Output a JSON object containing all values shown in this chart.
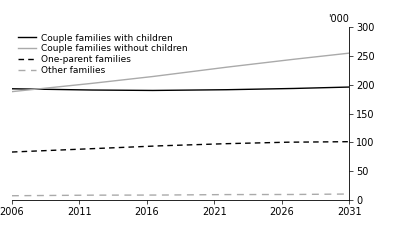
{
  "title": "",
  "ylabel": "'000",
  "years": [
    2006,
    2011,
    2016,
    2021,
    2026,
    2031
  ],
  "series": {
    "Couple families with children": {
      "values": [
        193,
        191,
        190,
        191,
        193,
        196
      ],
      "color": "#000000",
      "linestyle": "solid",
      "linewidth": 1.0,
      "dash": null
    },
    "Couple families without children": {
      "values": [
        188,
        200,
        213,
        228,
        242,
        255
      ],
      "color": "#aaaaaa",
      "linestyle": "solid",
      "linewidth": 1.0,
      "dash": null
    },
    "One-parent families": {
      "values": [
        83,
        88,
        93,
        97,
        100,
        101
      ],
      "color": "#000000",
      "linestyle": "dashed",
      "linewidth": 1.0,
      "dash": [
        4,
        3
      ]
    },
    "Other families": {
      "values": [
        7,
        8,
        8,
        9,
        9,
        10
      ],
      "color": "#aaaaaa",
      "linestyle": "dashed",
      "linewidth": 1.0,
      "dash": [
        5,
        4
      ]
    }
  },
  "xlim": [
    2006,
    2031
  ],
  "ylim": [
    0,
    300
  ],
  "yticks": [
    0,
    50,
    100,
    150,
    200,
    250,
    300
  ],
  "xticks": [
    2006,
    2011,
    2016,
    2021,
    2026,
    2031
  ],
  "legend_order": [
    "Couple families with children",
    "Couple families without children",
    "One-parent families",
    "Other families"
  ],
  "background_color": "#ffffff"
}
